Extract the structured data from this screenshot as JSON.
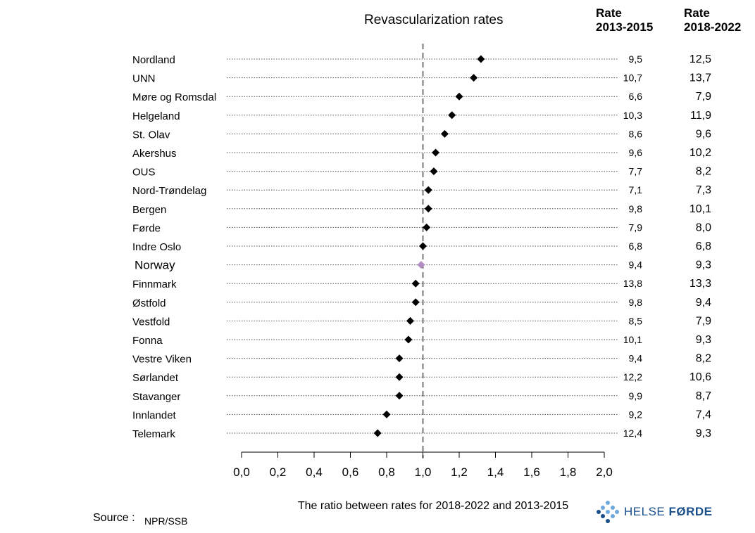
{
  "chart_data": {
    "type": "scatter",
    "title": "Revascularization rates",
    "xlabel": "The ratio between rates for 2018-2022 and 2013-2015",
    "xlim": [
      0.0,
      2.0
    ],
    "x_ticks": [
      "0,0",
      "0,2",
      "0,4",
      "0,6",
      "0,8",
      "1,0",
      "1,2",
      "1,4",
      "1,6",
      "1,8",
      "2,0"
    ],
    "reference_line": 1.0,
    "columns": {
      "rate_2013": "Rate 2013-2015",
      "rate_2018": "Rate 2018-2022"
    },
    "rows": [
      {
        "region": "Nordland",
        "ratio": 1.32,
        "rate_2013": "9,5",
        "rate_2018": "12,5"
      },
      {
        "region": "UNN",
        "ratio": 1.28,
        "rate_2013": "10,7",
        "rate_2018": "13,7"
      },
      {
        "region": "Møre og Romsdal",
        "ratio": 1.2,
        "rate_2013": "6,6",
        "rate_2018": "7,9"
      },
      {
        "region": "Helgeland",
        "ratio": 1.16,
        "rate_2013": "10,3",
        "rate_2018": "11,9"
      },
      {
        "region": "St. Olav",
        "ratio": 1.12,
        "rate_2013": "8,6",
        "rate_2018": "9,6"
      },
      {
        "region": "Akershus",
        "ratio": 1.07,
        "rate_2013": "9,6",
        "rate_2018": "10,2"
      },
      {
        "region": "OUS",
        "ratio": 1.06,
        "rate_2013": "7,7",
        "rate_2018": "8,2"
      },
      {
        "region": "Nord-Trøndelag",
        "ratio": 1.03,
        "rate_2013": "7,1",
        "rate_2018": "7,3"
      },
      {
        "region": "Bergen",
        "ratio": 1.03,
        "rate_2013": "9,8",
        "rate_2018": "10,1"
      },
      {
        "region": "Førde",
        "ratio": 1.02,
        "rate_2013": "7,9",
        "rate_2018": "8,0"
      },
      {
        "region": "Indre Oslo",
        "ratio": 1.0,
        "rate_2013": "6,8",
        "rate_2018": "6,8"
      },
      {
        "region": "Norway",
        "ratio": 0.99,
        "rate_2013": "9,4",
        "rate_2018": "9,3",
        "highlight": true
      },
      {
        "region": "Finnmark",
        "ratio": 0.96,
        "rate_2013": "13,8",
        "rate_2018": "13,3"
      },
      {
        "region": "Østfold",
        "ratio": 0.96,
        "rate_2013": "9,8",
        "rate_2018": "9,4"
      },
      {
        "region": "Vestfold",
        "ratio": 0.93,
        "rate_2013": "8,5",
        "rate_2018": "7,9"
      },
      {
        "region": "Fonna",
        "ratio": 0.92,
        "rate_2013": "10,1",
        "rate_2018": "9,3"
      },
      {
        "region": "Vestre Viken",
        "ratio": 0.87,
        "rate_2013": "9,4",
        "rate_2018": "8,2"
      },
      {
        "region": "Sørlandet",
        "ratio": 0.87,
        "rate_2013": "12,2",
        "rate_2018": "10,6"
      },
      {
        "region": "Stavanger",
        "ratio": 0.87,
        "rate_2013": "9,9",
        "rate_2018": "8,7"
      },
      {
        "region": "Innlandet",
        "ratio": 0.8,
        "rate_2013": "9,2",
        "rate_2018": "7,4"
      },
      {
        "region": "Telemark",
        "ratio": 0.75,
        "rate_2013": "12,4",
        "rate_2018": "9,3"
      }
    ],
    "colors": {
      "marker": "#000000",
      "highlight_marker": "#b28dbf",
      "reference_line": "#777777",
      "row_line": "#555555"
    }
  },
  "header": {
    "rate_2013_line1": "Rate",
    "rate_2013_line2": "2013-2015",
    "rate_2018_line1": "Rate",
    "rate_2018_line2": "2018-2022"
  },
  "source": {
    "label": "Source :",
    "value": "NPR/SSB"
  },
  "logo": {
    "text_light": "HELSE ",
    "text_bold": "FØRDE",
    "color": "#1b4f8a",
    "dot_colors": [
      "#1b4f8a",
      "#6fa8dc"
    ]
  }
}
